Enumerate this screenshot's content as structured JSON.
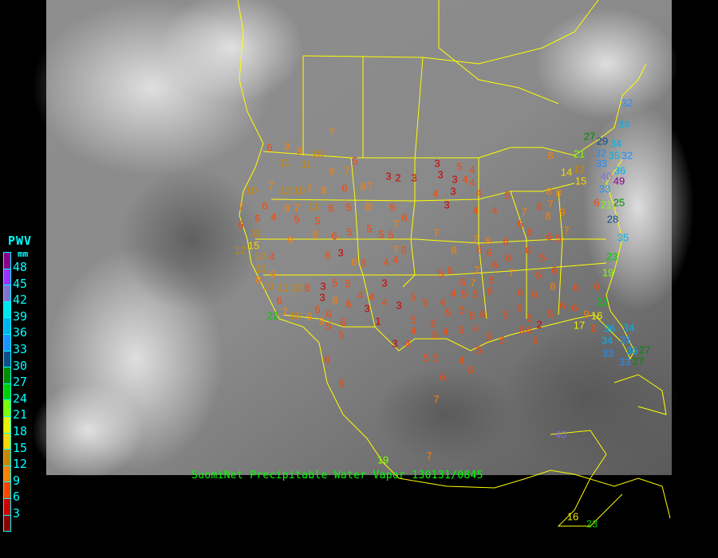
{
  "caption": "SuomiNet Precipitable Water Vapor 130131/0845",
  "legend": {
    "title": "PWV",
    "unit": "mm",
    "labels": [
      "48",
      "45",
      "42",
      "39",
      "36",
      "33",
      "30",
      "27",
      "24",
      "21",
      "18",
      "15",
      "12",
      "9",
      "6",
      "3"
    ],
    "colors": [
      "#8b008b",
      "#9b30ff",
      "#8470d0",
      "#00e5ee",
      "#00b2ee",
      "#1e90ff",
      "#104e8b",
      "#008b00",
      "#00cd00",
      "#7fff00",
      "#eeee00",
      "#ffd700",
      "#cd8500",
      "#ff8000",
      "#ff4500",
      "#cd0000",
      "#8b0000"
    ]
  },
  "colors": {
    "background": "#000000",
    "borders": "#ffff00",
    "caption": "#00ff00",
    "legend_text": "#00ffff"
  },
  "stations": [
    "7",
    "6",
    "9",
    "9",
    "10",
    "5",
    "11",
    "11",
    "9",
    "7",
    "3",
    "2",
    "3",
    "3",
    "5",
    "4",
    "3",
    "3",
    "4",
    "4",
    "4",
    "3",
    "4",
    "5",
    "3",
    "4",
    "4",
    "10",
    "7",
    "12",
    "10",
    "7",
    "8",
    "6",
    "8",
    "7",
    "5",
    "8",
    "5",
    "6",
    "11",
    "8",
    "7",
    "6",
    "7",
    "6",
    "4",
    "5",
    "5",
    "11",
    "15",
    "6",
    "10",
    "12",
    "12",
    "4",
    "9",
    "8",
    "6",
    "5",
    "5",
    "5",
    "5",
    "7",
    "6",
    "7",
    "7",
    "8",
    "6",
    "6",
    "7",
    "6",
    "7",
    "8",
    "8",
    "9",
    "8",
    "6",
    "6",
    "5",
    "7",
    "6",
    "3",
    "8",
    "5",
    "4",
    "4",
    "7",
    "5",
    "8",
    "6",
    "6",
    "6",
    "7",
    "6",
    "6",
    "5",
    "7",
    "6",
    "6",
    "5",
    "6",
    "7",
    "8",
    "9",
    "10",
    "11",
    "10",
    "6",
    "3",
    "5",
    "5",
    "3",
    "3",
    "8",
    "6",
    "6",
    "7",
    "6",
    "4",
    "3",
    "4",
    "4",
    "5",
    "3",
    "5",
    "4",
    "4",
    "5",
    "5",
    "6",
    "6",
    "6",
    "8",
    "5",
    "6",
    "6",
    "6",
    "22",
    "10",
    "9",
    "9",
    "6",
    "6",
    "1",
    "5",
    "5",
    "5",
    "5",
    "5",
    "6",
    "5",
    "5",
    "5",
    "5",
    "6",
    "6",
    "9",
    "16",
    "5",
    "5",
    "3",
    "4",
    "4",
    "5",
    "4",
    "5",
    "4",
    "5",
    "5",
    "6",
    "6",
    "6",
    "2",
    "5",
    "5",
    "4",
    "5",
    "5",
    "6",
    "6",
    "6",
    "7",
    "7",
    "32",
    "34",
    "27",
    "29",
    "34",
    "32",
    "33",
    "35",
    "32",
    "36",
    "40",
    "49",
    "33",
    "21",
    "8",
    "14",
    "12",
    "15",
    "6",
    "21",
    "25",
    "28",
    "35",
    "23",
    "19",
    "22",
    "17",
    "6",
    "36",
    "34",
    "31",
    "33",
    "34",
    "36",
    "27",
    "27",
    "33",
    "40",
    "19",
    "16",
    "23"
  ]
}
